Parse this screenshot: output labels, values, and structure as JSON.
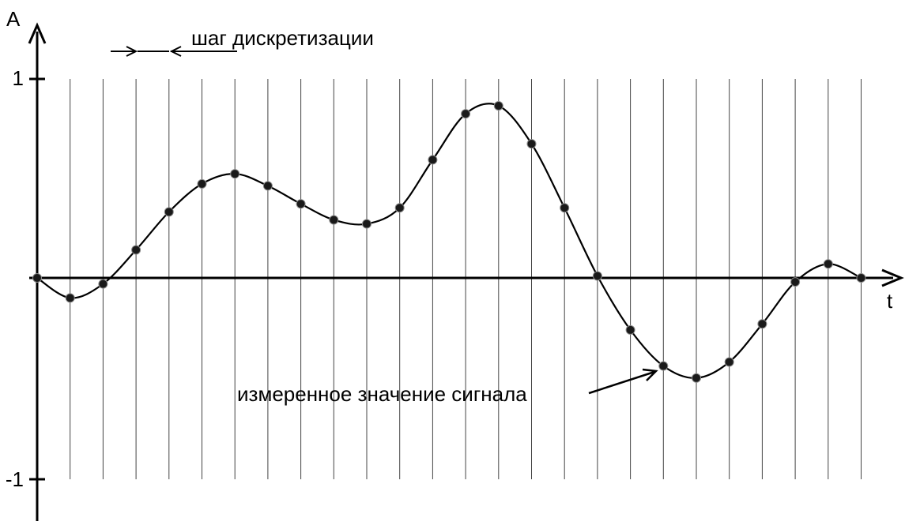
{
  "chart_data": {
    "type": "line",
    "title": "",
    "xlabel": "t",
    "ylabel": "A",
    "y_ticks": [
      {
        "value": 1,
        "label": "1"
      },
      {
        "value": -1,
        "label": "-1"
      }
    ],
    "ylim": [
      -1,
      1
    ],
    "grid": "vertical sampling lines",
    "annotations": {
      "sampling_step": "шаг дискретизации",
      "measured_value": "измеренное значение сигнала"
    },
    "series": [
      {
        "values": [
          0.0,
          -0.1,
          -0.03,
          0.14,
          0.33,
          0.47,
          0.52,
          0.46,
          0.37,
          0.29,
          0.27,
          0.35,
          0.59,
          0.82,
          0.86,
          0.67,
          0.35,
          0.01,
          -0.26,
          -0.44,
          -0.5,
          -0.42,
          -0.23,
          -0.02,
          0.07,
          0.0
        ]
      }
    ]
  }
}
